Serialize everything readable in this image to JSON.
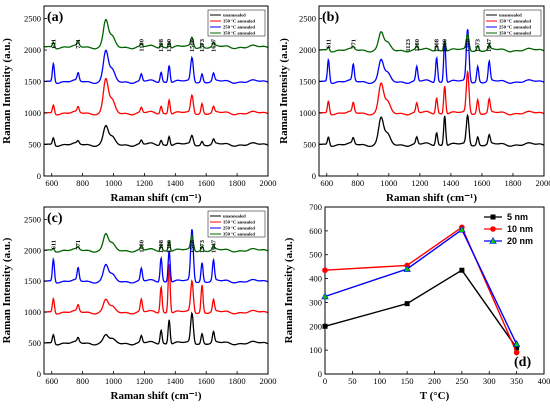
{
  "chart_data": [
    {
      "panel": "(a)",
      "type": "line",
      "xlabel": "Raman shift (cm⁻¹)",
      "ylabel": "Raman Intensity (a.u.)",
      "xlim": [
        550,
        2000
      ],
      "ylim": [
        0,
        2700
      ],
      "xticks": [
        600,
        800,
        1000,
        1200,
        1400,
        1600,
        1800,
        2000
      ],
      "yticks": [
        0,
        500,
        1000,
        1500,
        2000,
        2500
      ],
      "legend_position": "top-right",
      "peak_labels": [
        "611",
        "771",
        "1180",
        "1308",
        "1360",
        "1508",
        "1573",
        "1647"
      ],
      "series": [
        {
          "name": "unannealed",
          "color": "#000000",
          "offset": 500,
          "peaks": [
            [
              611,
              120
            ],
            [
              771,
              40
            ],
            [
              950,
              290
            ],
            [
              1180,
              60
            ],
            [
              1308,
              80
            ],
            [
              1360,
              150
            ],
            [
              1508,
              140
            ],
            [
              1573,
              60
            ],
            [
              1647,
              70
            ]
          ]
        },
        {
          "name": "150 °C annealed",
          "color": "#ff0000",
          "offset": 1000,
          "peaks": [
            [
              611,
              140
            ],
            [
              771,
              80
            ],
            [
              950,
              530
            ],
            [
              1180,
              80
            ],
            [
              1308,
              120
            ],
            [
              1360,
              230
            ],
            [
              1508,
              280
            ],
            [
              1573,
              160
            ],
            [
              1647,
              90
            ]
          ]
        },
        {
          "name": "250 °C annealed",
          "color": "#0000ff",
          "offset": 1500,
          "peaks": [
            [
              611,
              300
            ],
            [
              771,
              120
            ],
            [
              950,
              480
            ],
            [
              1180,
              110
            ],
            [
              1308,
              160
            ],
            [
              1360,
              280
            ],
            [
              1508,
              380
            ],
            [
              1573,
              130
            ],
            [
              1647,
              120
            ]
          ]
        },
        {
          "name": "350 °C annealed",
          "color": "#006400",
          "offset": 2050,
          "peaks": [
            [
              611,
              90
            ],
            [
              771,
              70
            ],
            [
              950,
              420
            ],
            [
              1180,
              40
            ],
            [
              1308,
              60
            ],
            [
              1360,
              100
            ],
            [
              1508,
              150
            ],
            [
              1573,
              60
            ],
            [
              1647,
              60
            ]
          ]
        }
      ]
    },
    {
      "panel": "(b)",
      "type": "line",
      "xlabel": "Raman shift (cm⁻¹)",
      "ylabel": "Raman Intensity (a.u.)",
      "xlim": [
        550,
        2000
      ],
      "ylim": [
        0,
        2700
      ],
      "xticks": [
        600,
        800,
        1000,
        1200,
        1400,
        1600,
        1800,
        2000
      ],
      "yticks": [
        0,
        500,
        1000,
        1500,
        2000,
        2500
      ],
      "legend_position": "top-right",
      "peak_labels": [
        "611",
        "771",
        "1123",
        "1180",
        "1308",
        "1360",
        "1508",
        "1573",
        "1647"
      ],
      "series": [
        {
          "name": "unannealed",
          "color": "#000000",
          "offset": 500,
          "peaks": [
            [
              611,
              130
            ],
            [
              771,
              90
            ],
            [
              950,
              420
            ],
            [
              1180,
              110
            ],
            [
              1308,
              200
            ],
            [
              1360,
              480
            ],
            [
              1508,
              460
            ],
            [
              1573,
              130
            ],
            [
              1647,
              140
            ]
          ]
        },
        {
          "name": "150 °C annealed",
          "color": "#ff0000",
          "offset": 1000,
          "peaks": [
            [
              611,
              200
            ],
            [
              771,
              150
            ],
            [
              950,
              460
            ],
            [
              1180,
              150
            ],
            [
              1308,
              250
            ],
            [
              1360,
              450
            ],
            [
              1508,
              650
            ],
            [
              1573,
              220
            ],
            [
              1647,
              210
            ]
          ]
        },
        {
          "name": "250 °C annealed",
          "color": "#0000ff",
          "offset": 1500,
          "peaks": [
            [
              611,
              360
            ],
            [
              771,
              260
            ],
            [
              950,
              340
            ],
            [
              1180,
              230
            ],
            [
              1308,
              390
            ],
            [
              1360,
              680
            ],
            [
              1508,
              830
            ],
            [
              1573,
              250
            ],
            [
              1647,
              310
            ]
          ]
        },
        {
          "name": "350 °C annealed",
          "color": "#006400",
          "offset": 2000,
          "peaks": [
            [
              611,
              60
            ],
            [
              771,
              40
            ],
            [
              950,
              280
            ],
            [
              1180,
              60
            ],
            [
              1308,
              90
            ],
            [
              1360,
              160
            ],
            [
              1508,
              250
            ],
            [
              1573,
              80
            ],
            [
              1647,
              70
            ]
          ]
        }
      ]
    },
    {
      "panel": "(c)",
      "type": "line",
      "xlabel": "Raman shift (cm⁻¹)",
      "ylabel": "Raman Intensity (a.u.)",
      "xlim": [
        550,
        2000
      ],
      "ylim": [
        0,
        2700
      ],
      "xticks": [
        600,
        800,
        1000,
        1200,
        1400,
        1600,
        1800,
        2000
      ],
      "yticks": [
        0,
        500,
        1000,
        1500,
        2000,
        2500
      ],
      "legend_position": "top-right",
      "peak_labels": [
        "611",
        "771",
        "1180",
        "1308",
        "1360",
        "1508",
        "1573",
        "1647"
      ],
      "series": [
        {
          "name": "unannealed",
          "color": "#000000",
          "offset": 500,
          "peaks": [
            [
              611,
              150
            ],
            [
              771,
              70
            ],
            [
              950,
              130
            ],
            [
              1180,
              110
            ],
            [
              1308,
              220
            ],
            [
              1360,
              400
            ],
            [
              1508,
              480
            ],
            [
              1573,
              160
            ],
            [
              1647,
              170
            ]
          ]
        },
        {
          "name": "150 °C annealed",
          "color": "#ff0000",
          "offset": 1000,
          "peaks": [
            [
              611,
              230
            ],
            [
              771,
              100
            ],
            [
              950,
              200
            ],
            [
              1180,
              200
            ],
            [
              1308,
              420
            ],
            [
              1360,
              800
            ],
            [
              1508,
              500
            ],
            [
              1573,
              450
            ],
            [
              1647,
              190
            ]
          ]
        },
        {
          "name": "250 °C annealed",
          "color": "#0000ff",
          "offset": 1500,
          "peaks": [
            [
              611,
              370
            ],
            [
              771,
              200
            ],
            [
              950,
              260
            ],
            [
              1180,
              200
            ],
            [
              1308,
              390
            ],
            [
              1360,
              520
            ],
            [
              1508,
              840
            ],
            [
              1573,
              310
            ],
            [
              1647,
              330
            ]
          ]
        },
        {
          "name": "350 °C annealed",
          "color": "#006400",
          "offset": 2000,
          "peaks": [
            [
              611,
              40
            ],
            [
              771,
              40
            ],
            [
              950,
              260
            ],
            [
              1180,
              60
            ],
            [
              1308,
              100
            ],
            [
              1360,
              170
            ],
            [
              1508,
              240
            ],
            [
              1573,
              80
            ],
            [
              1647,
              60
            ]
          ]
        }
      ]
    },
    {
      "panel": "(d)",
      "type": "line",
      "xlabel": "T (°C)",
      "ylabel": "Raman Intensity (a.u.)",
      "xlim": [
        0,
        400
      ],
      "ylim": [
        0,
        700
      ],
      "xticks": [
        0,
        50,
        100,
        150,
        200,
        250,
        300,
        350,
        400
      ],
      "yticks": [
        0,
        100,
        200,
        300,
        400,
        500,
        600,
        700
      ],
      "x": [
        0,
        150,
        250,
        350
      ],
      "legend_position": "top-right",
      "series": [
        {
          "name": "5 nm",
          "color": "#000000",
          "marker": "square",
          "values": [
            200,
            295,
            435,
            110
          ]
        },
        {
          "name": "10 nm",
          "color": "#ff0000",
          "marker": "circle",
          "values": [
            435,
            455,
            615,
            90
          ]
        },
        {
          "name": "20 nm",
          "color": "#0000ff",
          "marker": "triangle",
          "values": [
            325,
            440,
            605,
            125
          ]
        }
      ],
      "triangle_fill": "#00cc00"
    }
  ]
}
